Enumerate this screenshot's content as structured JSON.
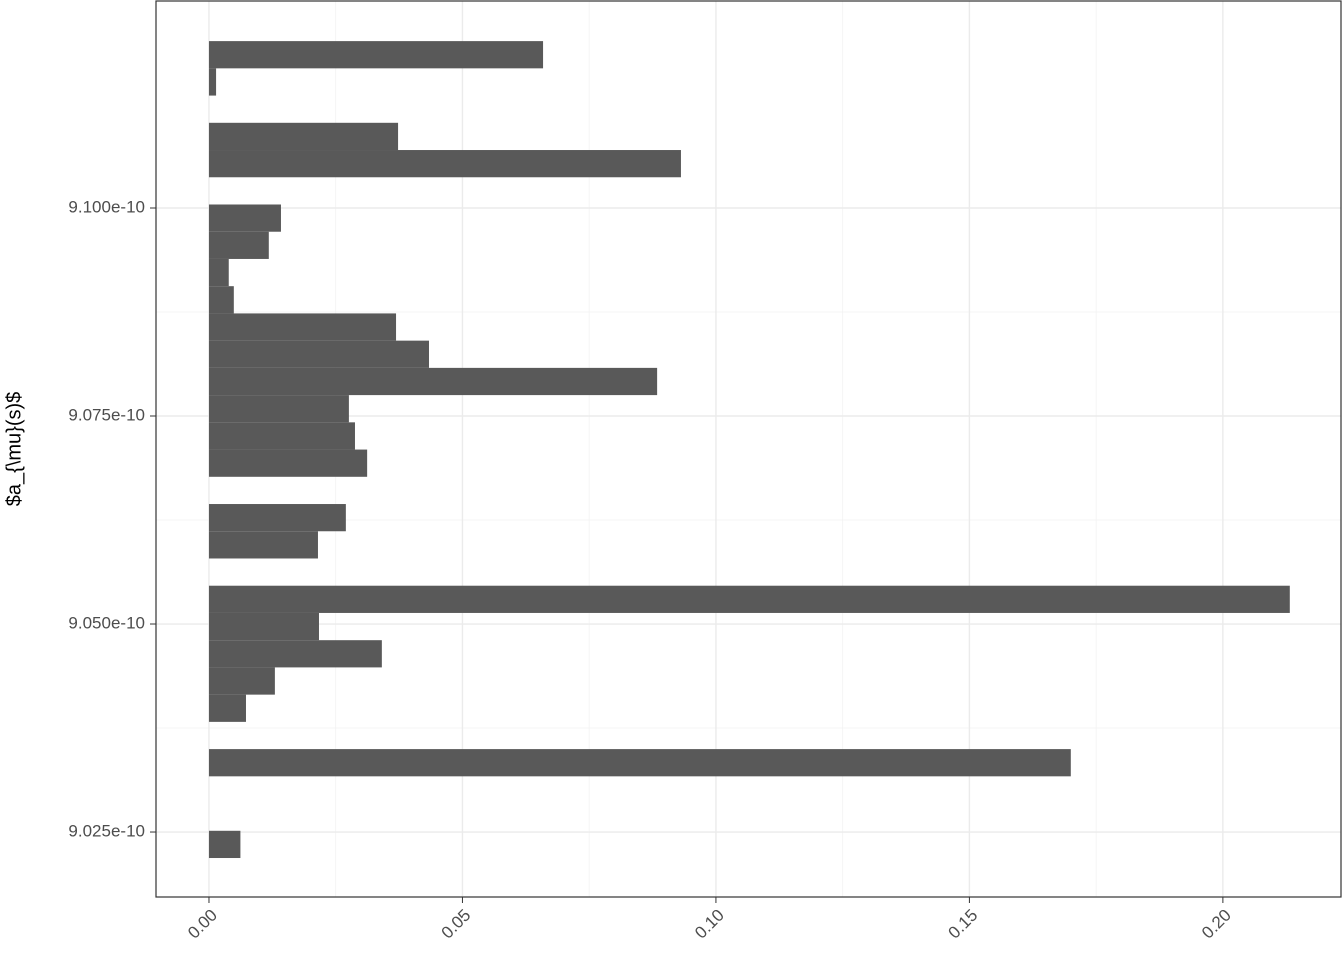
{
  "chart_data": {
    "type": "histogram",
    "orientation": "horizontal",
    "y_label": "$a_{\\mu}(s)$",
    "bins": [
      9.021875e-10,
      9.025148e-10,
      9.028421e-10,
      9.031693e-10,
      9.034966e-10,
      9.038239e-10,
      9.041512e-10,
      9.044785e-10,
      9.048057e-10,
      9.05133e-10,
      9.054603e-10,
      9.057876e-10,
      9.061149e-10,
      9.064421e-10,
      9.067694e-10,
      9.070967e-10,
      9.07424e-10,
      9.077513e-10,
      9.080785e-10,
      9.084058e-10,
      9.087331e-10,
      9.090604e-10,
      9.093877e-10,
      9.097149e-10,
      9.100422e-10,
      9.103695e-10,
      9.106968e-10,
      9.110241e-10,
      9.113513e-10,
      9.116786e-10,
      9.120059e-10
    ],
    "values": [
      0.0062,
      0,
      0,
      0.17,
      0,
      0.0073,
      0.013,
      0.0341,
      0.0217,
      0.2132,
      0,
      0.0215,
      0.027,
      0,
      0.0312,
      0.0288,
      0.0276,
      0.0884,
      0.0434,
      0.0369,
      0.0049,
      0.0039,
      0.0118,
      0.0142,
      0,
      0.0931,
      0.0373,
      0,
      0.0014,
      0.0659
    ],
    "color": "#595959",
    "xlim": [
      -0.01045,
      0.2233
    ],
    "xticks": [
      {
        "value": 0,
        "label": "0.00"
      },
      {
        "value": 0.05,
        "label": "0.05"
      },
      {
        "value": 0.1,
        "label": "0.10"
      },
      {
        "value": 0.15,
        "label": "0.15"
      },
      {
        "value": 0.2,
        "label": "0.20"
      }
    ],
    "ylim": [
      9.01719e-10,
      9.12488e-10
    ],
    "yticks": [
      {
        "value": 9.025e-10,
        "label": "9.025e-10"
      },
      {
        "value": 9.05e-10,
        "label": "9.050e-10"
      },
      {
        "value": 9.075e-10,
        "label": "9.075e-10"
      },
      {
        "value": 9.1e-10,
        "label": "9.100e-10"
      }
    ],
    "grid": true
  }
}
